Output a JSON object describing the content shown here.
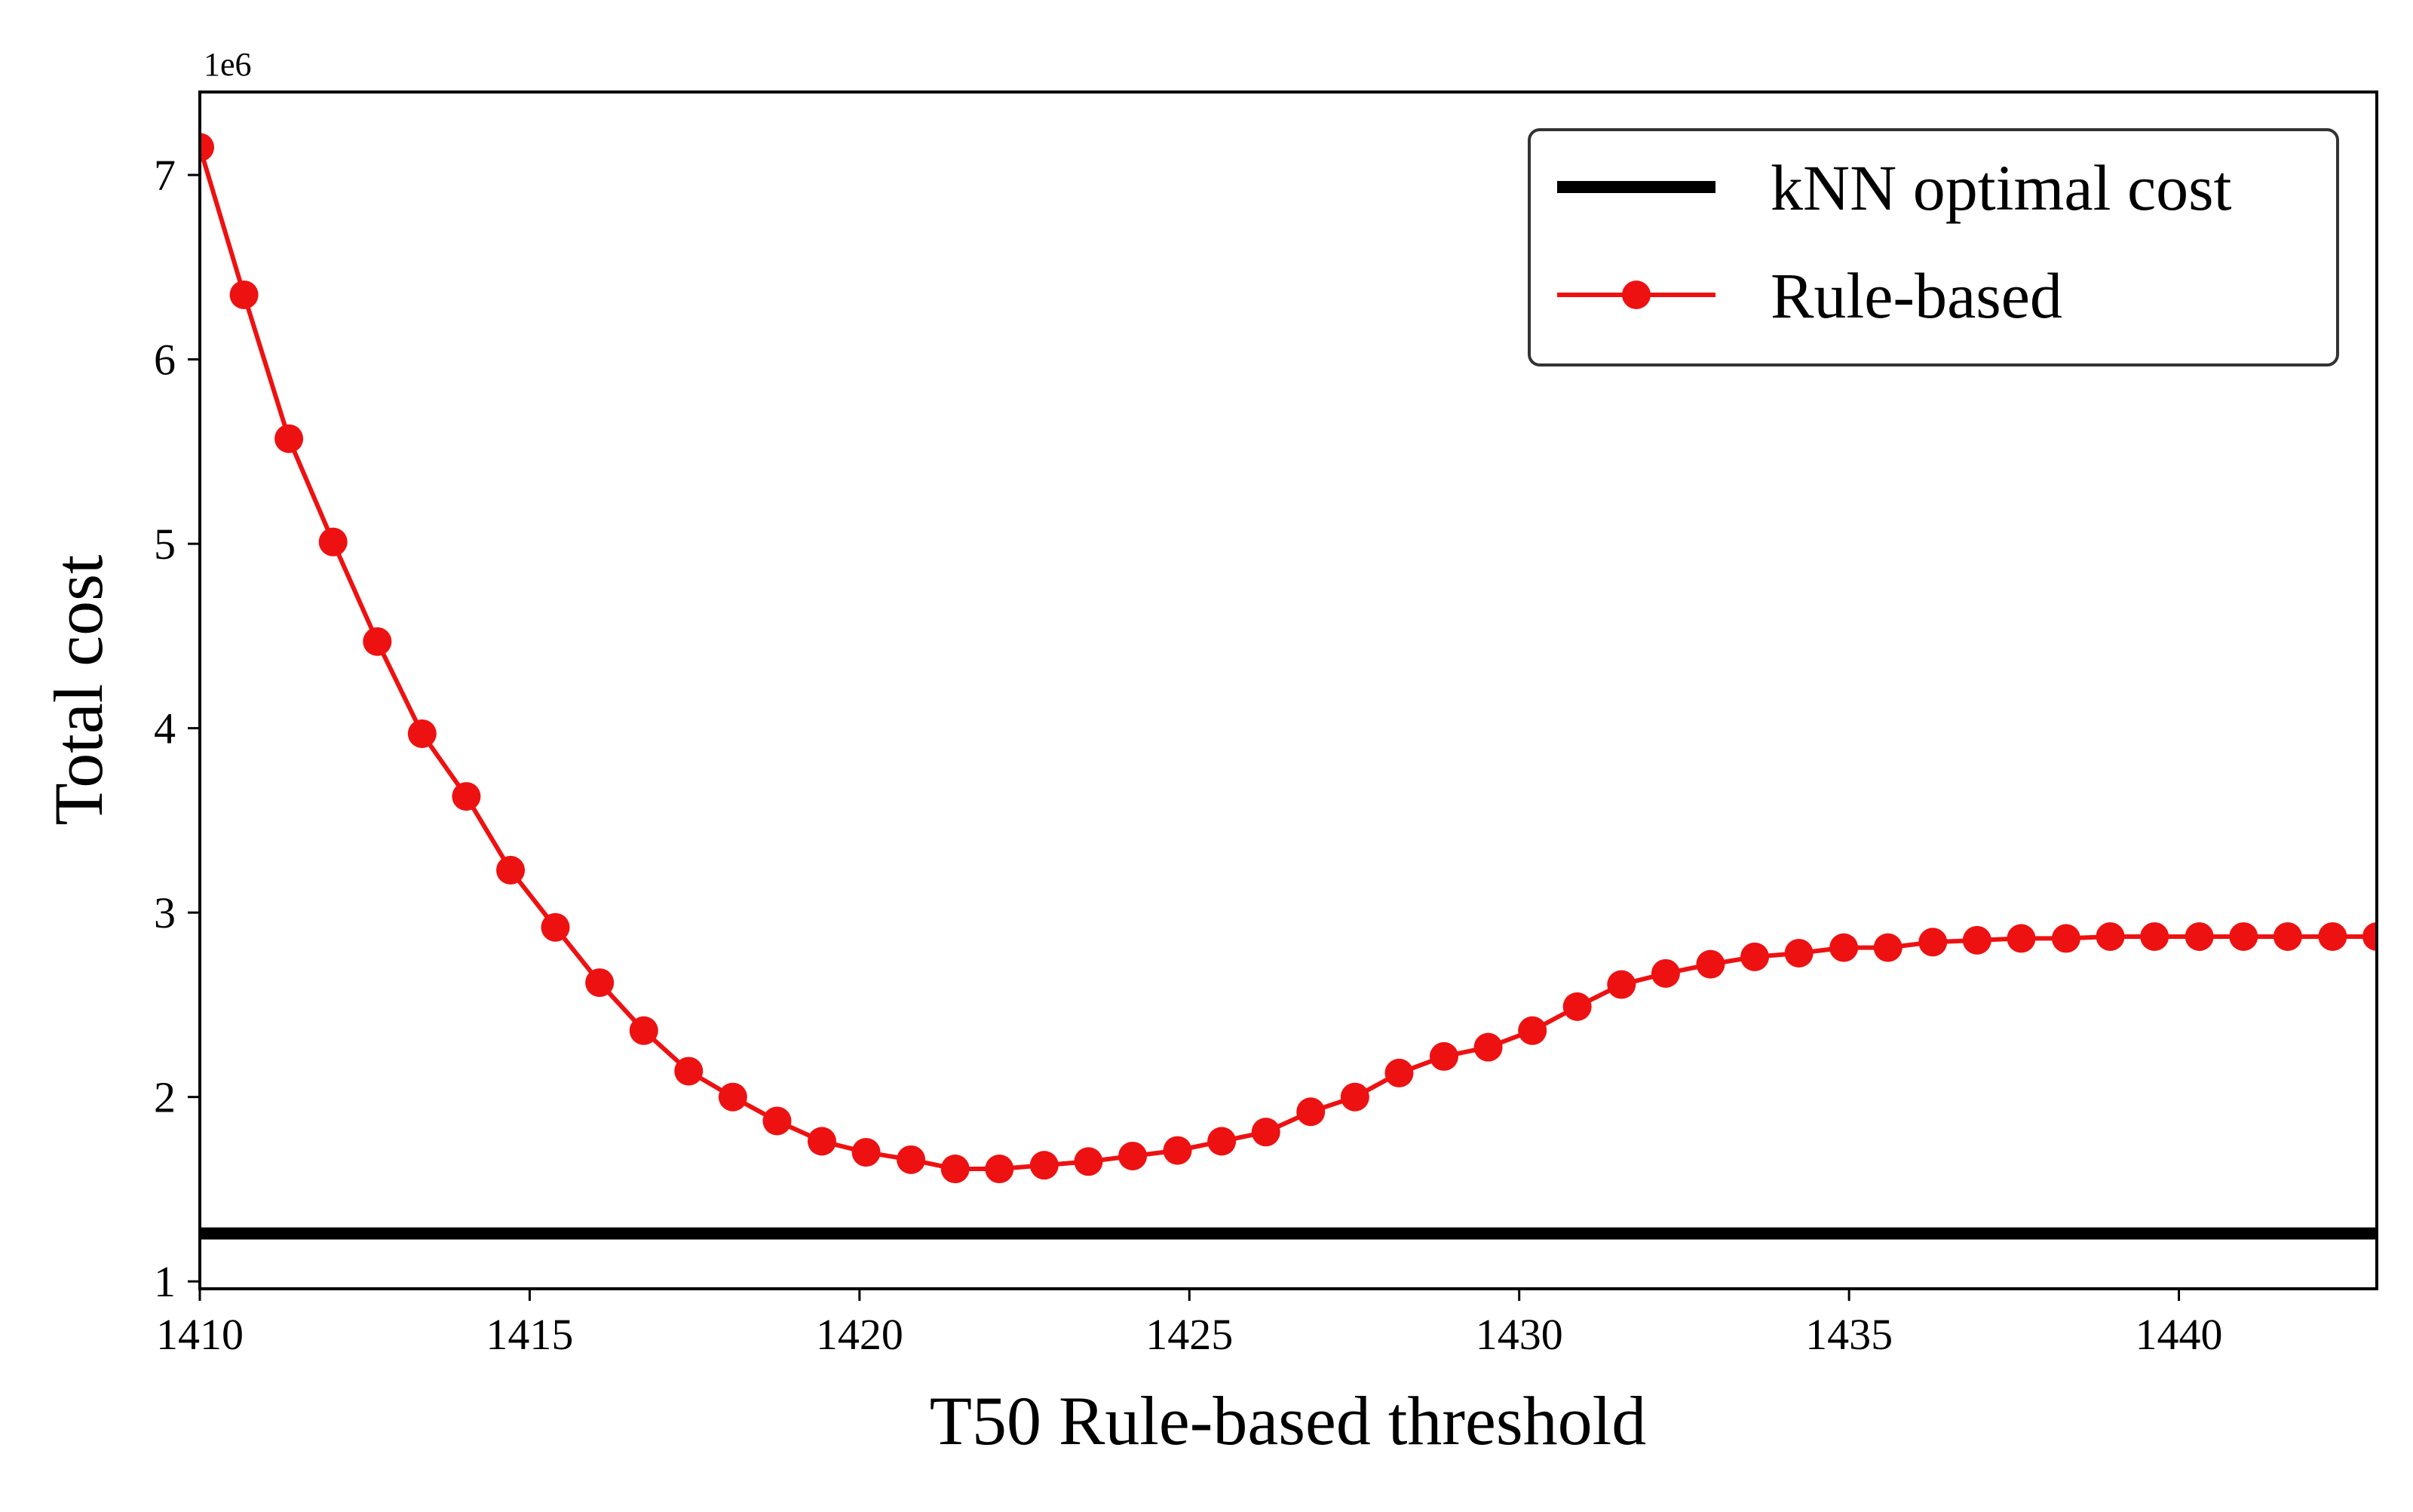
{
  "chart_data": {
    "type": "line",
    "title": "",
    "xlabel": "T50 Rule-based threshold",
    "ylabel": "Total cost",
    "y_offset_label": "1e6",
    "xlim": [
      1410,
      1443
    ],
    "ylim": [
      0.96,
      7.45
    ],
    "x_ticks": [
      1410,
      1415,
      1420,
      1425,
      1430,
      1435,
      1440
    ],
    "x_tick_labels": [
      "1410",
      "1415",
      "1420",
      "1425",
      "1430",
      "1435",
      "1440"
    ],
    "y_ticks": [
      1,
      2,
      3,
      4,
      5,
      6,
      7
    ],
    "y_tick_labels": [
      "1",
      "2",
      "3",
      "4",
      "5",
      "6",
      "7"
    ],
    "grid": false,
    "legend_position": "top-right",
    "reference_line": {
      "name": "kNN optimal cost",
      "value": 1.26,
      "color": "#000000"
    },
    "series": [
      {
        "name": "Rule-based",
        "color": "#ee1111",
        "marker": "circle",
        "x": [
          1410.0,
          1410.67,
          1411.35,
          1412.02,
          1412.69,
          1413.37,
          1414.04,
          1414.71,
          1415.39,
          1416.06,
          1416.73,
          1417.41,
          1418.08,
          1418.75,
          1419.43,
          1420.1,
          1420.78,
          1421.45,
          1422.12,
          1422.8,
          1423.47,
          1424.14,
          1424.82,
          1425.49,
          1426.16,
          1426.84,
          1427.51,
          1428.18,
          1428.86,
          1429.53,
          1430.2,
          1430.88,
          1431.55,
          1432.22,
          1432.9,
          1433.57,
          1434.24,
          1434.92,
          1435.59,
          1436.27,
          1436.94,
          1437.61,
          1438.29,
          1438.96,
          1439.63,
          1440.31,
          1440.98,
          1441.65,
          1442.33,
          1443.0
        ],
        "y": [
          7.15,
          6.35,
          5.57,
          5.01,
          4.47,
          3.97,
          3.63,
          3.23,
          2.92,
          2.62,
          2.36,
          2.14,
          2.0,
          1.87,
          1.76,
          1.7,
          1.66,
          1.61,
          1.61,
          1.63,
          1.65,
          1.68,
          1.71,
          1.76,
          1.81,
          1.92,
          2.0,
          2.13,
          2.22,
          2.27,
          2.36,
          2.49,
          2.61,
          2.67,
          2.72,
          2.76,
          2.78,
          2.81,
          2.81,
          2.84,
          2.85,
          2.86,
          2.86,
          2.87,
          2.87,
          2.87,
          2.87,
          2.87,
          2.87,
          2.87
        ]
      }
    ]
  }
}
